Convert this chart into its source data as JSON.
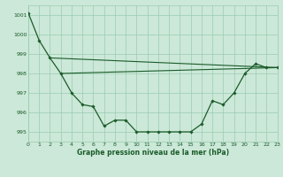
{
  "title": "Graphe pression niveau de la mer (hPa)",
  "background_color": "#cce8d8",
  "grid_color": "#99ccb0",
  "line_color": "#1a5c2a",
  "x_min": 0,
  "x_max": 23,
  "y_min": 994.5,
  "y_max": 1001.5,
  "yticks": [
    995,
    996,
    997,
    998,
    999,
    1000,
    1001
  ],
  "xticks": [
    0,
    1,
    2,
    3,
    4,
    5,
    6,
    7,
    8,
    9,
    10,
    11,
    12,
    13,
    14,
    15,
    16,
    17,
    18,
    19,
    20,
    21,
    22,
    23
  ],
  "line1_x": [
    0,
    1,
    2,
    3,
    4,
    5,
    6,
    7,
    8,
    9,
    10,
    11,
    12,
    13,
    14,
    15,
    16,
    17,
    18,
    19,
    20,
    21,
    22,
    23
  ],
  "line1_y": [
    1001.1,
    999.7,
    998.8,
    998.0,
    997.0,
    996.4,
    996.3,
    995.3,
    995.6,
    995.6,
    995.0,
    995.0,
    995.0,
    995.0,
    995.0,
    995.0,
    995.4,
    996.6,
    996.4,
    997.0,
    998.0,
    998.5,
    998.3,
    998.3
  ],
  "line2_x": [
    3,
    23
  ],
  "line2_y": [
    998.0,
    998.3
  ],
  "line3_x": [
    2,
    23
  ],
  "line3_y": [
    998.8,
    998.3
  ]
}
